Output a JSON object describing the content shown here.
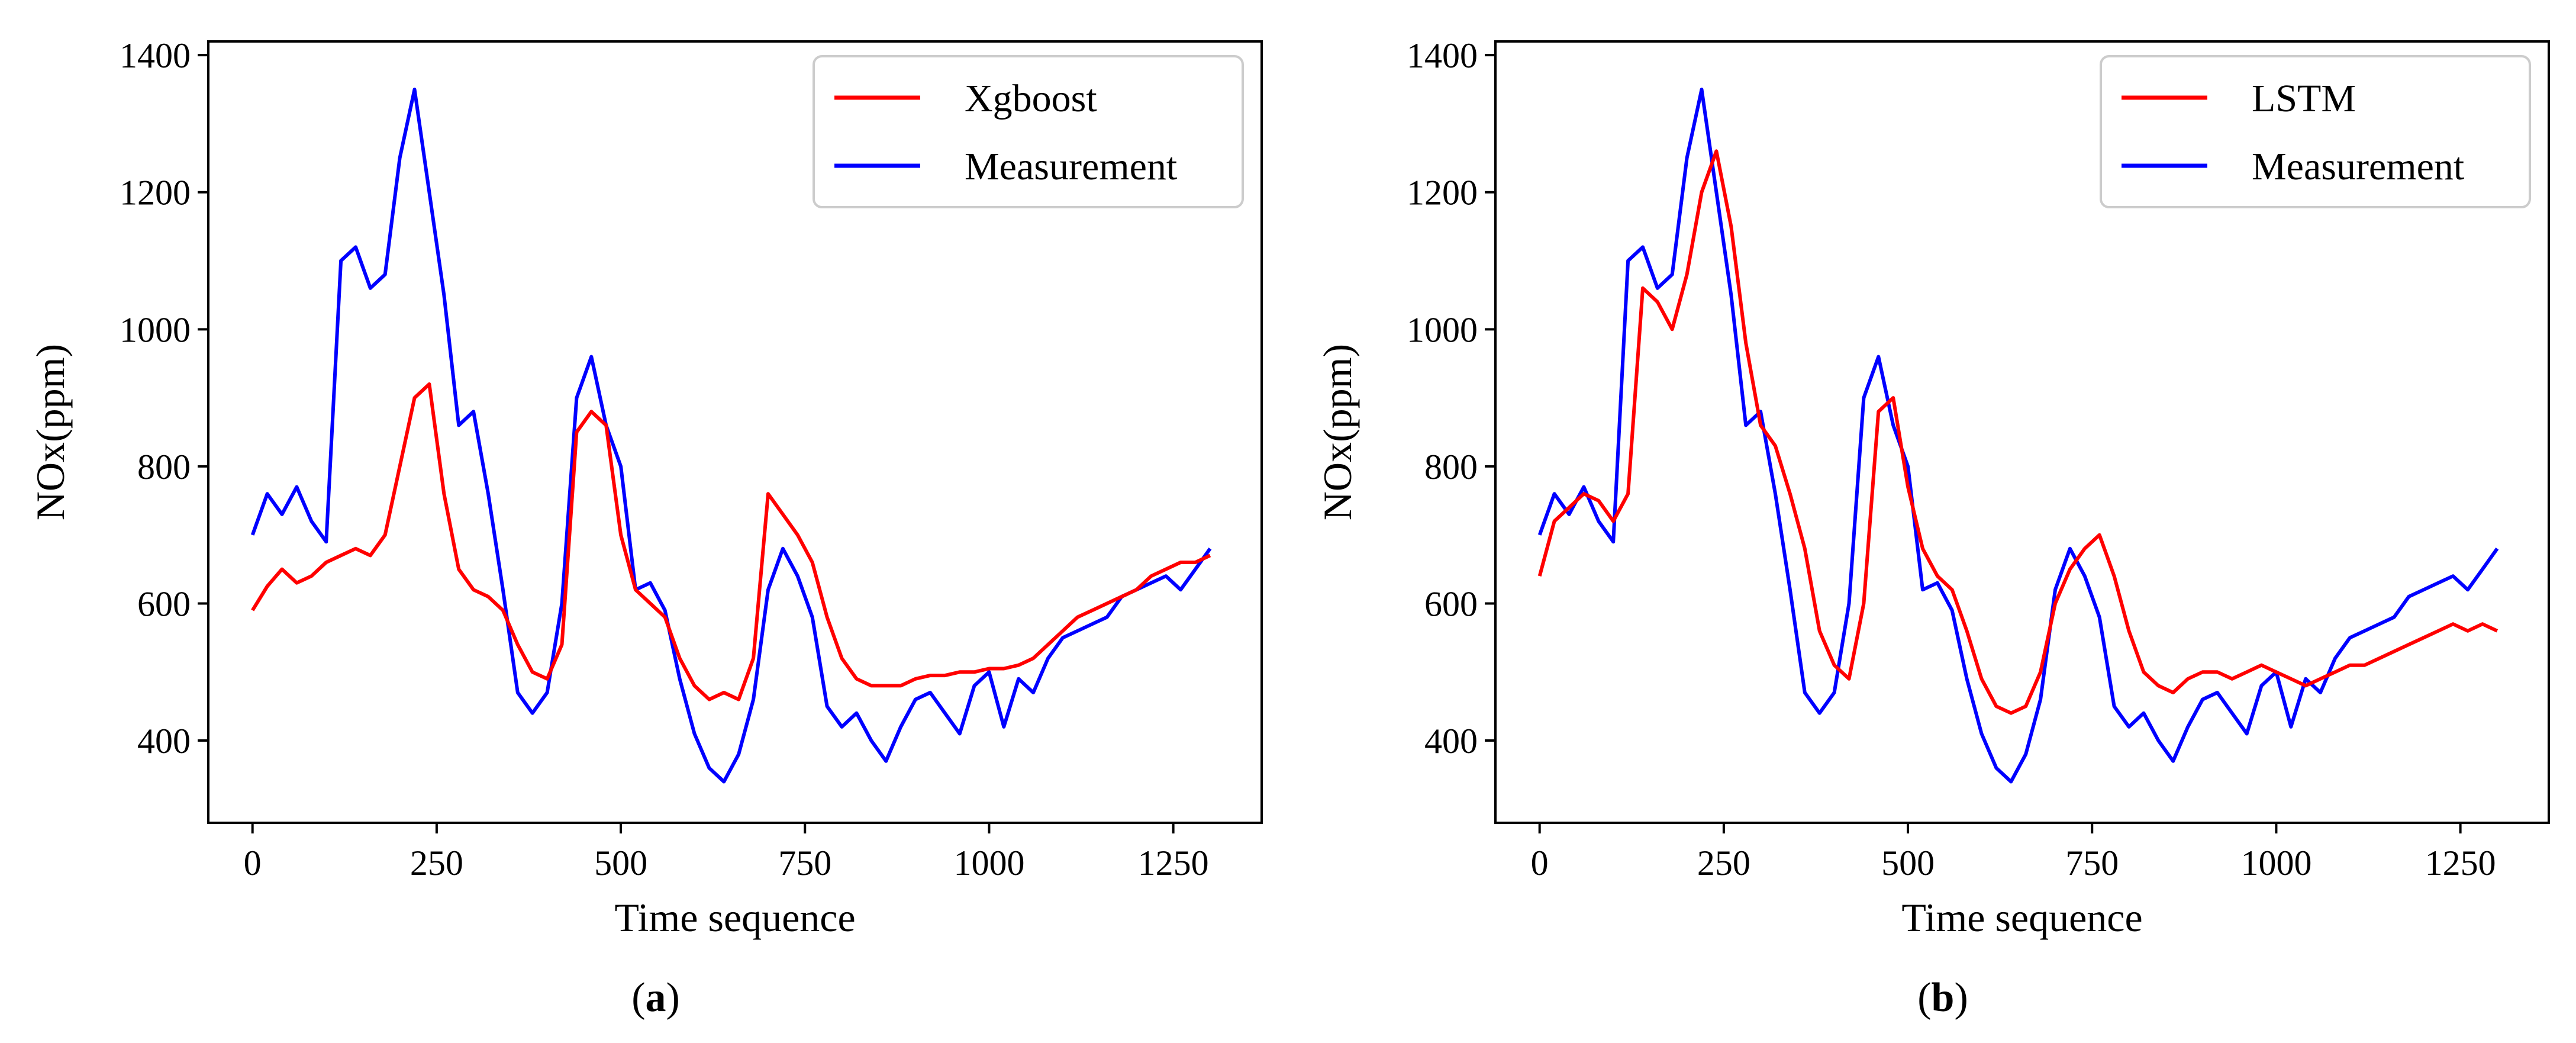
{
  "figure": {
    "panels": [
      {
        "label_open": "(",
        "label_letter": "a",
        "label_close": ")"
      },
      {
        "label_open": "(",
        "label_letter": "b",
        "label_close": ")"
      }
    ]
  },
  "chart_data": [
    {
      "type": "line",
      "panel": "a",
      "xlabel": "Time sequence",
      "ylabel": "NOx(ppm)",
      "xlim": [
        -60,
        1370
      ],
      "ylim": [
        280,
        1420
      ],
      "xticks": [
        0,
        250,
        500,
        750,
        1000,
        1250
      ],
      "yticks": [
        400,
        600,
        800,
        1000,
        1200,
        1400
      ],
      "legend_position": "top-right",
      "colors": {
        "Xgboost": "#ff0000",
        "Measurement": "#0000ff"
      },
      "series": [
        {
          "name": "Xgboost",
          "x": [
            0,
            20,
            40,
            60,
            80,
            100,
            120,
            140,
            160,
            180,
            200,
            220,
            240,
            260,
            280,
            300,
            320,
            340,
            360,
            380,
            400,
            420,
            440,
            460,
            480,
            500,
            520,
            540,
            560,
            580,
            600,
            620,
            640,
            660,
            680,
            700,
            720,
            740,
            760,
            780,
            800,
            820,
            840,
            860,
            880,
            900,
            920,
            940,
            960,
            980,
            1000,
            1020,
            1040,
            1060,
            1080,
            1100,
            1120,
            1140,
            1160,
            1180,
            1200,
            1220,
            1240,
            1260,
            1280,
            1300
          ],
          "values": [
            590,
            625,
            650,
            630,
            640,
            660,
            670,
            680,
            670,
            700,
            800,
            900,
            920,
            760,
            650,
            620,
            610,
            590,
            540,
            500,
            490,
            540,
            850,
            880,
            860,
            700,
            620,
            600,
            580,
            520,
            480,
            460,
            470,
            460,
            520,
            760,
            730,
            700,
            660,
            580,
            520,
            490,
            480,
            480,
            480,
            490,
            495,
            495,
            500,
            500,
            505,
            505,
            510,
            520,
            540,
            560,
            580,
            590,
            600,
            610,
            620,
            640,
            650,
            660,
            660,
            670
          ]
        },
        {
          "name": "Measurement",
          "x": [
            0,
            20,
            40,
            60,
            80,
            100,
            120,
            140,
            160,
            180,
            200,
            220,
            240,
            260,
            280,
            300,
            320,
            340,
            360,
            380,
            400,
            420,
            440,
            460,
            480,
            500,
            520,
            540,
            560,
            580,
            600,
            620,
            640,
            660,
            680,
            700,
            720,
            740,
            760,
            780,
            800,
            820,
            840,
            860,
            880,
            900,
            920,
            940,
            960,
            980,
            1000,
            1020,
            1040,
            1060,
            1080,
            1100,
            1120,
            1140,
            1160,
            1180,
            1200,
            1220,
            1240,
            1260,
            1280,
            1300
          ],
          "values": [
            700,
            760,
            730,
            770,
            720,
            690,
            1100,
            1120,
            1060,
            1080,
            1250,
            1350,
            1200,
            1050,
            860,
            880,
            760,
            620,
            470,
            440,
            470,
            600,
            900,
            960,
            860,
            800,
            620,
            630,
            590,
            490,
            410,
            360,
            340,
            380,
            460,
            620,
            680,
            640,
            580,
            450,
            420,
            440,
            400,
            370,
            420,
            460,
            470,
            440,
            410,
            480,
            500,
            420,
            490,
            470,
            520,
            550,
            560,
            570,
            580,
            610,
            620,
            630,
            640,
            620,
            650,
            680
          ]
        }
      ],
      "legend": [
        "Xgboost",
        "Measurement"
      ]
    },
    {
      "type": "line",
      "panel": "b",
      "xlabel": "Time sequence",
      "ylabel": "NOx(ppm)",
      "xlim": [
        -60,
        1370
      ],
      "ylim": [
        280,
        1420
      ],
      "xticks": [
        0,
        250,
        500,
        750,
        1000,
        1250
      ],
      "yticks": [
        400,
        600,
        800,
        1000,
        1200,
        1400
      ],
      "legend_position": "top-right",
      "colors": {
        "LSTM": "#ff0000",
        "Measurement": "#0000ff"
      },
      "series": [
        {
          "name": "LSTM",
          "x": [
            0,
            20,
            40,
            60,
            80,
            100,
            120,
            140,
            160,
            180,
            200,
            220,
            240,
            260,
            280,
            300,
            320,
            340,
            360,
            380,
            400,
            420,
            440,
            460,
            480,
            500,
            520,
            540,
            560,
            580,
            600,
            620,
            640,
            660,
            680,
            700,
            720,
            740,
            760,
            780,
            800,
            820,
            840,
            860,
            880,
            900,
            920,
            940,
            960,
            980,
            1000,
            1020,
            1040,
            1060,
            1080,
            1100,
            1120,
            1140,
            1160,
            1180,
            1200,
            1220,
            1240,
            1260,
            1280,
            1300
          ],
          "values": [
            640,
            720,
            740,
            760,
            750,
            720,
            760,
            1060,
            1040,
            1000,
            1080,
            1200,
            1260,
            1150,
            980,
            860,
            830,
            760,
            680,
            560,
            510,
            490,
            600,
            880,
            900,
            770,
            680,
            640,
            620,
            560,
            490,
            450,
            440,
            450,
            500,
            600,
            650,
            680,
            700,
            640,
            560,
            500,
            480,
            470,
            490,
            500,
            500,
            490,
            500,
            510,
            500,
            490,
            480,
            490,
            500,
            510,
            510,
            520,
            530,
            540,
            550,
            560,
            570,
            560,
            570,
            560
          ]
        },
        {
          "name": "Measurement",
          "x": [
            0,
            20,
            40,
            60,
            80,
            100,
            120,
            140,
            160,
            180,
            200,
            220,
            240,
            260,
            280,
            300,
            320,
            340,
            360,
            380,
            400,
            420,
            440,
            460,
            480,
            500,
            520,
            540,
            560,
            580,
            600,
            620,
            640,
            660,
            680,
            700,
            720,
            740,
            760,
            780,
            800,
            820,
            840,
            860,
            880,
            900,
            920,
            940,
            960,
            980,
            1000,
            1020,
            1040,
            1060,
            1080,
            1100,
            1120,
            1140,
            1160,
            1180,
            1200,
            1220,
            1240,
            1260,
            1280,
            1300
          ],
          "values": [
            700,
            760,
            730,
            770,
            720,
            690,
            1100,
            1120,
            1060,
            1080,
            1250,
            1350,
            1200,
            1050,
            860,
            880,
            760,
            620,
            470,
            440,
            470,
            600,
            900,
            960,
            860,
            800,
            620,
            630,
            590,
            490,
            410,
            360,
            340,
            380,
            460,
            620,
            680,
            640,
            580,
            450,
            420,
            440,
            400,
            370,
            420,
            460,
            470,
            440,
            410,
            480,
            500,
            420,
            490,
            470,
            520,
            550,
            560,
            570,
            580,
            610,
            620,
            630,
            640,
            620,
            650,
            680
          ]
        }
      ],
      "legend": [
        "LSTM",
        "Measurement"
      ]
    }
  ]
}
